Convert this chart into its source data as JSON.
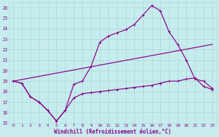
{
  "background_color": "#c6ecee",
  "grid_color": "#aed8da",
  "line_color": "#880088",
  "title": "Windchill (Refroidissement éolien,°C)",
  "xlim": [
    -0.5,
    23.5
  ],
  "ylim": [
    15,
    26.5
  ],
  "xticks": [
    0,
    1,
    2,
    3,
    4,
    5,
    6,
    7,
    8,
    9,
    10,
    11,
    12,
    13,
    14,
    15,
    16,
    17,
    18,
    19,
    20,
    21,
    22,
    23
  ],
  "yticks": [
    15,
    16,
    17,
    18,
    19,
    20,
    21,
    22,
    23,
    24,
    25,
    26
  ],
  "line1_x": [
    0,
    1,
    2,
    3,
    4,
    5,
    6,
    7,
    8,
    9,
    10,
    11,
    12,
    13,
    14,
    15,
    16,
    17,
    18,
    19,
    20,
    21,
    22,
    23
  ],
  "line1_y": [
    19.0,
    18.8,
    17.5,
    17.0,
    16.2,
    15.2,
    16.2,
    18.7,
    19.0,
    20.4,
    22.7,
    23.3,
    23.6,
    23.9,
    24.4,
    25.3,
    26.2,
    25.7,
    23.7,
    22.5,
    21.0,
    19.2,
    19.0,
    18.3
  ],
  "line2_x": [
    0,
    23
  ],
  "line2_y": [
    19.0,
    22.5
  ],
  "line3_x": [
    0,
    1,
    2,
    3,
    4,
    5,
    6,
    7,
    8,
    9,
    10,
    11,
    12,
    13,
    14,
    15,
    16,
    17,
    18,
    19,
    20,
    21,
    22,
    23
  ],
  "line3_y": [
    19.0,
    18.8,
    17.5,
    17.0,
    16.2,
    15.2,
    16.2,
    17.4,
    17.8,
    17.9,
    18.0,
    18.1,
    18.2,
    18.3,
    18.4,
    18.5,
    18.6,
    18.8,
    19.0,
    19.0,
    19.2,
    19.3,
    18.5,
    18.2
  ]
}
